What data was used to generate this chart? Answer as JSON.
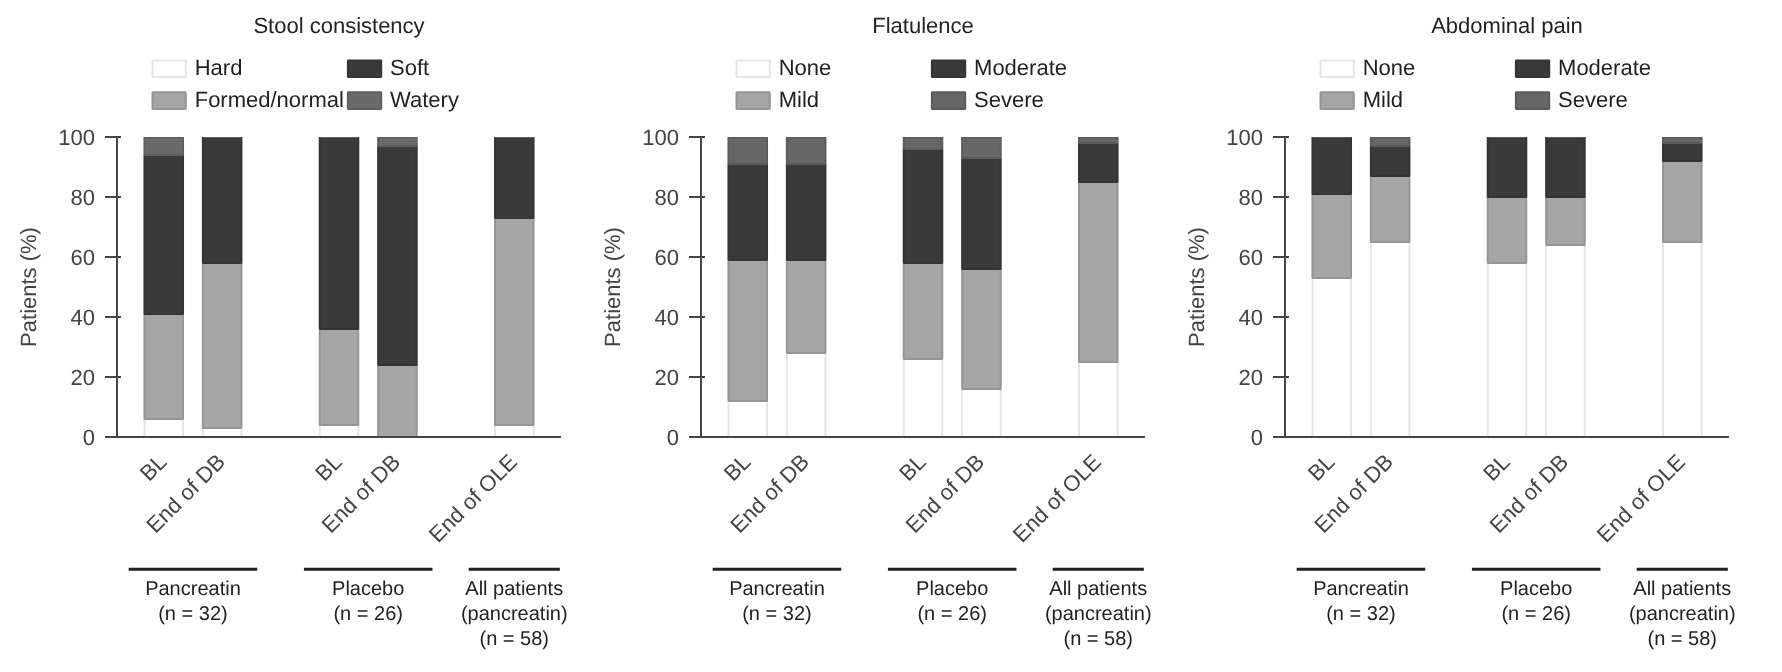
{
  "chart_data": [
    {
      "type": "bar",
      "title": "Stool consistency",
      "ylabel": "Patients (%)",
      "categories": [
        "BL",
        "End of DB",
        "BL",
        "End of DB",
        "End of OLE"
      ],
      "stacked": true,
      "ylim": [
        0,
        100
      ],
      "yticks": [
        0,
        20,
        40,
        60,
        80,
        100
      ],
      "grid": false,
      "legend": "top",
      "series": [
        {
          "name": "Hard",
          "color": "#ffffff",
          "values": [
            6,
            3,
            4,
            0,
            4
          ]
        },
        {
          "name": "Formed/normal",
          "color": "#a6a6a6",
          "values": [
            35,
            55,
            32,
            24,
            69
          ]
        },
        {
          "name": "Soft",
          "color": "#3a3a3a",
          "values": [
            53,
            42,
            64,
            73,
            27
          ]
        },
        {
          "name": "Watery",
          "color": "#6a6a6a",
          "values": [
            6,
            0,
            0,
            3,
            0
          ]
        }
      ],
      "annotations": [
        "Pancreatin\n(n = 32)",
        "Placebo\n(n = 26)",
        "All patients\n(pancreatin)\n(n = 58)"
      ]
    },
    {
      "type": "bar",
      "title": "Flatulence",
      "ylabel": "Patients (%)",
      "categories": [
        "BL",
        "End of DB",
        "BL",
        "End of DB",
        "End of OLE"
      ],
      "stacked": true,
      "ylim": [
        0,
        100
      ],
      "yticks": [
        0,
        20,
        40,
        60,
        80,
        100
      ],
      "grid": false,
      "legend": "top",
      "series": [
        {
          "name": "None",
          "color": "#ffffff",
          "values": [
            12,
            28,
            26,
            16,
            25
          ]
        },
        {
          "name": "Mild",
          "color": "#a6a6a6",
          "values": [
            47,
            31,
            32,
            40,
            60
          ]
        },
        {
          "name": "Moderate",
          "color": "#3a3a3a",
          "values": [
            32,
            32,
            38,
            37,
            13
          ]
        },
        {
          "name": "Severe",
          "color": "#666666",
          "values": [
            9,
            9,
            4,
            7,
            2
          ]
        }
      ],
      "annotations": [
        "Pancreatin\n(n = 32)",
        "Placebo\n(n = 26)",
        "All patients\n(pancreatin)\n(n = 58)"
      ]
    },
    {
      "type": "bar",
      "title": "Abdominal pain",
      "ylabel": "Patients (%)",
      "categories": [
        "BL",
        "End of DB",
        "BL",
        "End of DB",
        "End of OLE"
      ],
      "stacked": true,
      "ylim": [
        0,
        100
      ],
      "yticks": [
        0,
        20,
        40,
        60,
        80,
        100
      ],
      "grid": false,
      "legend": "top",
      "series": [
        {
          "name": "None",
          "color": "#ffffff",
          "values": [
            53,
            65,
            58,
            64,
            65
          ]
        },
        {
          "name": "Mild",
          "color": "#a6a6a6",
          "values": [
            28,
            22,
            22,
            16,
            27
          ]
        },
        {
          "name": "Moderate",
          "color": "#3a3a3a",
          "values": [
            19,
            10,
            20,
            20,
            6
          ]
        },
        {
          "name": "Severe",
          "color": "#666666",
          "values": [
            0,
            3,
            0,
            0,
            2
          ]
        }
      ],
      "annotations": [
        "Pancreatin\n(n = 32)",
        "Placebo\n(n = 26)",
        "All patients\n(pancreatin)\n(n = 58)"
      ]
    }
  ]
}
